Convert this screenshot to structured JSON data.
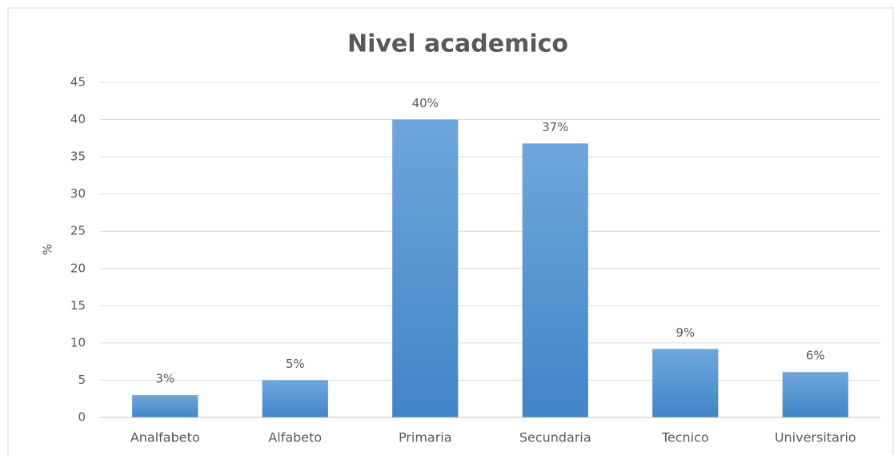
{
  "chart_data": {
    "type": "bar",
    "title": "Nivel academico",
    "y_label": "%",
    "categories": [
      "Analfabeto",
      "Alfabeto",
      "Primaria",
      "Secundaria",
      "Tecnico",
      "Universitario"
    ],
    "values": [
      3,
      5,
      40,
      36.8,
      9.2,
      6.1
    ],
    "value_labels": [
      "3%",
      "5%",
      "40%",
      "37%",
      "9%",
      "6%"
    ],
    "color": "#5b9bd5",
    "ylim": [
      0,
      45
    ],
    "yticks": [
      0,
      5,
      10,
      15,
      20,
      25,
      30,
      35,
      40,
      45
    ],
    "grid": true
  }
}
